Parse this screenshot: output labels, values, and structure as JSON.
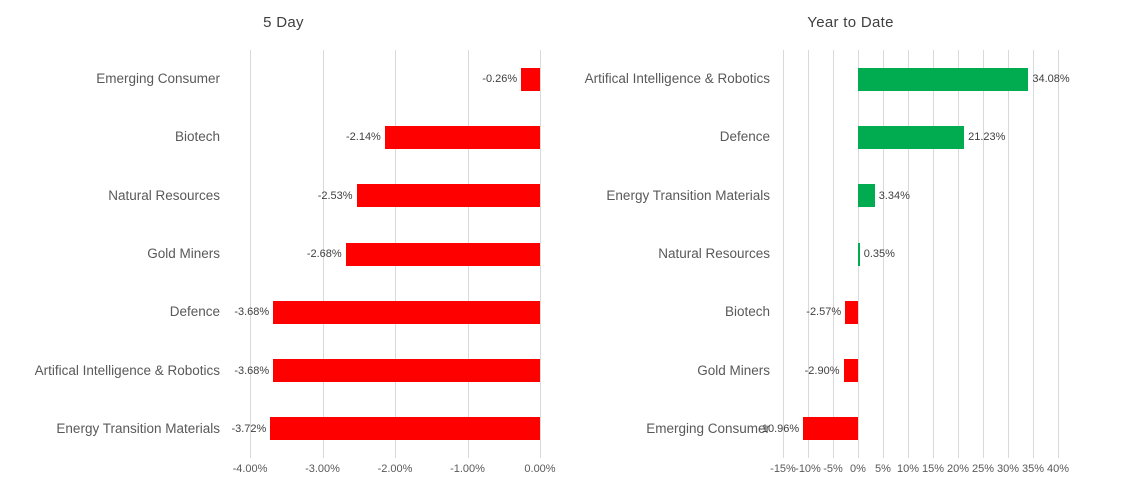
{
  "page": {
    "background": "#ffffff"
  },
  "styles": {
    "grid_color": "#d9d9d9",
    "title_color": "#404040",
    "category_color": "#595959",
    "tick_color": "#595959",
    "data_label_color": "#404040",
    "negative_color": "#ff0000",
    "positive_color": "#00ac4f"
  },
  "chart_data": [
    {
      "type": "bar",
      "orientation": "horizontal",
      "title": "5 Day",
      "categories": [
        "Emerging Consumer",
        "Biotech",
        "Natural Resources",
        "Gold Miners",
        "Defence",
        "Artifical Intelligence & Robotics",
        "Energy Transition Materials"
      ],
      "values": [
        -0.26,
        -2.14,
        -2.53,
        -2.68,
        -3.68,
        -3.68,
        -3.72
      ],
      "data_labels": [
        "-0.26%",
        "-2.14%",
        "-2.53%",
        "-2.68%",
        "-3.68%",
        "-3.68%",
        "-3.72%"
      ],
      "xlim": [
        -4.0,
        0.0
      ],
      "tick_values": [
        -4,
        -3,
        -2,
        -1,
        0
      ],
      "tick_labels": [
        "-4.00%",
        "-3.00%",
        "-2.00%",
        "-1.00%",
        "0.00%"
      ],
      "bar_color_negative": "#ff0000",
      "bar_color_positive": "#00ac4f",
      "grid": true,
      "legend": "none"
    },
    {
      "type": "bar",
      "orientation": "horizontal",
      "title": "Year to Date",
      "categories": [
        "Artifical Intelligence & Robotics",
        "Defence",
        "Energy Transition Materials",
        "Natural Resources",
        "Biotech",
        "Gold Miners",
        "Emerging Consumer"
      ],
      "values": [
        34.08,
        21.23,
        3.34,
        0.35,
        -2.57,
        -2.9,
        -10.96
      ],
      "data_labels": [
        "34.08%",
        "21.23%",
        "3.34%",
        "0.35%",
        "-2.57%",
        "-2.90%",
        "-10.96%"
      ],
      "xlim": [
        -15,
        40
      ],
      "tick_values": [
        -15,
        -10,
        -5,
        0,
        5,
        10,
        15,
        20,
        25,
        30,
        35,
        40
      ],
      "tick_labels": [
        "-15%",
        "-10%",
        "-5%",
        "0%",
        "5%",
        "10%",
        "15%",
        "20%",
        "25%",
        "30%",
        "35%",
        "40%"
      ],
      "bar_color_negative": "#ff0000",
      "bar_color_positive": "#00ac4f",
      "grid": true,
      "legend": "none"
    }
  ]
}
